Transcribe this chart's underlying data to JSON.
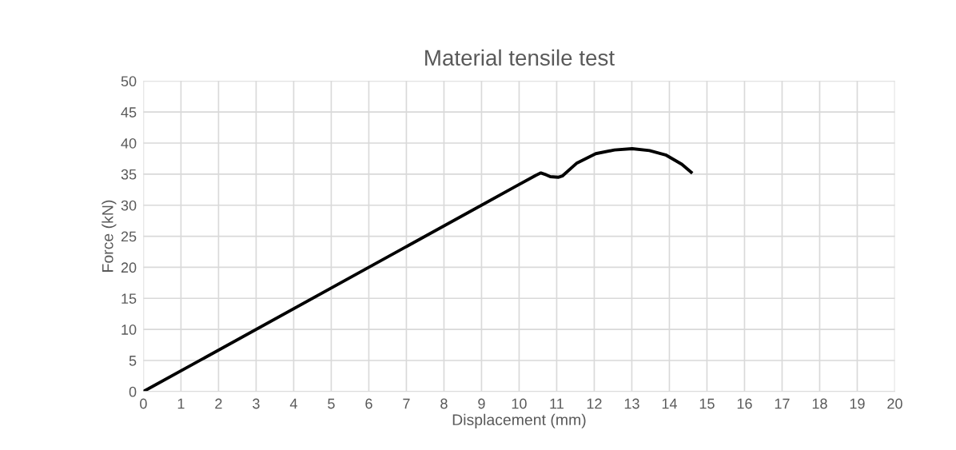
{
  "chart_data": {
    "type": "line",
    "title": "Material tensile test",
    "xlabel": "Displacement (mm)",
    "ylabel": "Force (kN)",
    "xlim": [
      0,
      20
    ],
    "xticks": [
      0,
      1,
      2,
      3,
      4,
      5,
      6,
      7,
      8,
      9,
      10,
      11,
      12,
      13,
      14,
      15,
      16,
      17,
      18,
      19,
      20
    ],
    "ylim": [
      0,
      50
    ],
    "yticks": [
      0,
      5,
      10,
      15,
      20,
      25,
      30,
      35,
      40,
      45,
      50
    ],
    "grid": true,
    "marker": "none",
    "line_style": "solid",
    "series": [
      {
        "color": "#000000",
        "x": [
          0,
          9.9,
          10.44,
          10.58,
          10.72,
          10.83,
          11.04,
          11.15,
          11.54,
          12.04,
          12.54,
          13.01,
          13.47,
          13.9,
          14.33,
          14.58
        ],
        "values": [
          0,
          33.0,
          34.8,
          35.2,
          34.9,
          34.6,
          34.5,
          34.7,
          36.8,
          38.3,
          38.9,
          39.1,
          38.8,
          38.1,
          36.6,
          35.3
        ]
      }
    ]
  }
}
